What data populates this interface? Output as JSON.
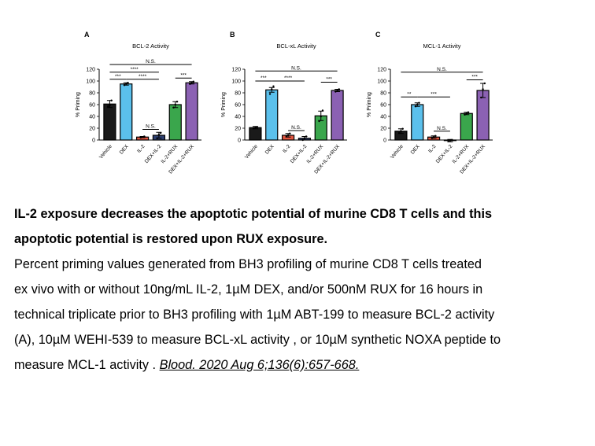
{
  "chart_data": [
    {
      "type": "bar",
      "panel_letter": "A",
      "title": "BCL-2 Activity",
      "ylabel": "% Priming",
      "ylim": [
        0,
        120
      ],
      "yticks": [
        0,
        20,
        40,
        60,
        80,
        100,
        120
      ],
      "categories": [
        "Vehicle",
        "DEX",
        "IL-2",
        "DEX+IL-2",
        "IL-2+RUX",
        "DEX+IL-2+RUX"
      ],
      "values": [
        61,
        95,
        5,
        8,
        60,
        97
      ],
      "errors": [
        6,
        2,
        1,
        5,
        5,
        2
      ],
      "points": [
        [
          57,
          59,
          67
        ],
        [
          93,
          95,
          97
        ],
        [
          4,
          5,
          6
        ],
        [
          3,
          9,
          12
        ],
        [
          55,
          60,
          65
        ],
        [
          95,
          97,
          99
        ]
      ],
      "bar_colors": [
        "#1a1a1a",
        "#5bc0ec",
        "#e05540",
        "#2d3f70",
        "#3aa64c",
        "#8b61b3"
      ],
      "annotations": [
        {
          "label": "***",
          "from": 0,
          "to": 1,
          "level": 103
        },
        {
          "label": "****",
          "from": 1,
          "to": 3,
          "level": 103
        },
        {
          "label": "****",
          "from": 0,
          "to": 3,
          "level": 115
        },
        {
          "label": "N.S.",
          "from": 0,
          "to": 5,
          "level": 128
        },
        {
          "label": "N.S.",
          "from": 2,
          "to": 3,
          "level": 18
        },
        {
          "label": "***",
          "from": 4,
          "to": 5,
          "level": 105
        }
      ]
    },
    {
      "type": "bar",
      "panel_letter": "B",
      "title": "BCL-xL Activity",
      "ylabel": "% Priming",
      "ylim": [
        0,
        120
      ],
      "yticks": [
        0,
        20,
        40,
        60,
        80,
        100,
        120
      ],
      "categories": [
        "Vehicle",
        "DEX",
        "IL-2",
        "DEX+IL-2",
        "IL-2+RUX",
        "DEX+IL-2+RUX"
      ],
      "values": [
        21,
        85,
        8,
        3,
        41,
        84
      ],
      "errors": [
        2,
        4,
        3,
        3,
        8,
        2
      ],
      "points": [
        [
          20,
          21,
          22
        ],
        [
          78,
          86,
          91
        ],
        [
          6,
          8,
          11
        ],
        [
          0,
          3,
          6
        ],
        [
          32,
          40,
          50
        ],
        [
          82,
          84,
          86
        ]
      ],
      "bar_colors": [
        "#1a1a1a",
        "#5bc0ec",
        "#e05540",
        "#2d3f70",
        "#3aa64c",
        "#8b61b3"
      ],
      "annotations": [
        {
          "label": "***",
          "from": 0,
          "to": 1,
          "level": 100
        },
        {
          "label": "****",
          "from": 1,
          "to": 3,
          "level": 100
        },
        {
          "label": "N.S.",
          "from": 0,
          "to": 5,
          "level": 117
        },
        {
          "label": "N.S.",
          "from": 2,
          "to": 3,
          "level": 16
        },
        {
          "label": "***",
          "from": 4,
          "to": 5,
          "level": 98
        }
      ]
    },
    {
      "type": "bar",
      "panel_letter": "C",
      "title": "MCL-1 Activity",
      "ylabel": "% Priming",
      "ylim": [
        0,
        120
      ],
      "yticks": [
        0,
        20,
        40,
        60,
        80,
        100,
        120
      ],
      "categories": [
        "Vehicle",
        "DEX",
        "IL-2",
        "DEX+IL-2",
        "IL-2+RUX",
        "DEX+IL-2+RUX"
      ],
      "values": [
        15,
        60,
        5,
        -1,
        45,
        84
      ],
      "errors": [
        4,
        3,
        2,
        2,
        2,
        12
      ],
      "points": [
        [
          12,
          15,
          19
        ],
        [
          57,
          60,
          63
        ],
        [
          3,
          5,
          7
        ],
        [
          -2,
          -1,
          0
        ],
        [
          43,
          45,
          47
        ],
        [
          72,
          86,
          96
        ]
      ],
      "bar_colors": [
        "#1a1a1a",
        "#5bc0ec",
        "#e05540",
        "#2d3f70",
        "#3aa64c",
        "#8b61b3"
      ],
      "annotations": [
        {
          "label": "**",
          "from": 0,
          "to": 1,
          "level": 73
        },
        {
          "label": "***",
          "from": 1,
          "to": 3,
          "level": 73
        },
        {
          "label": "N.S.",
          "from": 0,
          "to": 5,
          "level": 115
        },
        {
          "label": "N.S.",
          "from": 2,
          "to": 3,
          "level": 15
        },
        {
          "label": "***",
          "from": 4,
          "to": 5,
          "level": 102
        }
      ]
    }
  ],
  "caption": {
    "title_line1": "IL-2 exposure decreases the apoptotic potential of murine CD8 T cells and this",
    "title_line2": "apoptotic potential is restored upon RUX exposure.",
    "body_lines": [
      "Percent priming values generated from BH3 profiling of murine CD8 T cells treated",
      "ex vivo with or without 10ng/mL IL-2, 1µM DEX, and/or 500nM RUX for 16 hours in",
      "technical triplicate prior to BH3 profiling with 1µM ABT-199 to measure BCL-2 activity",
      "(A), 10µM WEHI-539 to measure BCL-xL activity , or 10µM synthetic NOXA peptide to"
    ],
    "last_line_text": "measure MCL-1 activity . ",
    "citation": "Blood. 2020 Aug 6;136(6):657-668."
  }
}
